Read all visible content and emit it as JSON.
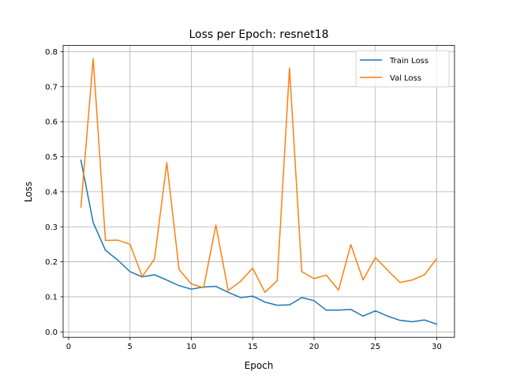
{
  "chart_data": {
    "type": "line",
    "title": "Loss per Epoch: resnet18",
    "xlabel": "Epoch",
    "ylabel": "Loss",
    "xlim": [
      -0.45,
      31.45
    ],
    "ylim": [
      -0.0155,
      0.8175
    ],
    "xticks": [
      0,
      5,
      10,
      15,
      20,
      25,
      30
    ],
    "yticks": [
      0.0,
      0.1,
      0.2,
      0.3,
      0.4,
      0.5,
      0.6,
      0.7,
      0.8
    ],
    "grid": true,
    "legend_position": "top-right",
    "x": [
      1,
      2,
      3,
      4,
      5,
      6,
      7,
      8,
      9,
      10,
      11,
      12,
      13,
      14,
      15,
      16,
      17,
      18,
      19,
      20,
      21,
      22,
      23,
      24,
      25,
      26,
      27,
      28,
      29,
      30
    ],
    "series": [
      {
        "name": "Train Loss",
        "color": "#1f77b4",
        "values": [
          0.49,
          0.312,
          0.233,
          0.205,
          0.172,
          0.157,
          0.163,
          0.148,
          0.132,
          0.122,
          0.128,
          0.13,
          0.113,
          0.098,
          0.102,
          0.085,
          0.076,
          0.077,
          0.098,
          0.089,
          0.062,
          0.062,
          0.064,
          0.045,
          0.06,
          0.045,
          0.033,
          0.029,
          0.034,
          0.022
        ]
      },
      {
        "name": "Val Loss",
        "color": "#ff7f0e",
        "values": [
          0.356,
          0.78,
          0.261,
          0.262,
          0.25,
          0.158,
          0.208,
          0.483,
          0.178,
          0.137,
          0.126,
          0.305,
          0.118,
          0.144,
          0.182,
          0.113,
          0.146,
          0.753,
          0.172,
          0.152,
          0.162,
          0.119,
          0.249,
          0.148,
          0.212,
          0.176,
          0.141,
          0.148,
          0.163,
          0.209
        ]
      }
    ]
  }
}
